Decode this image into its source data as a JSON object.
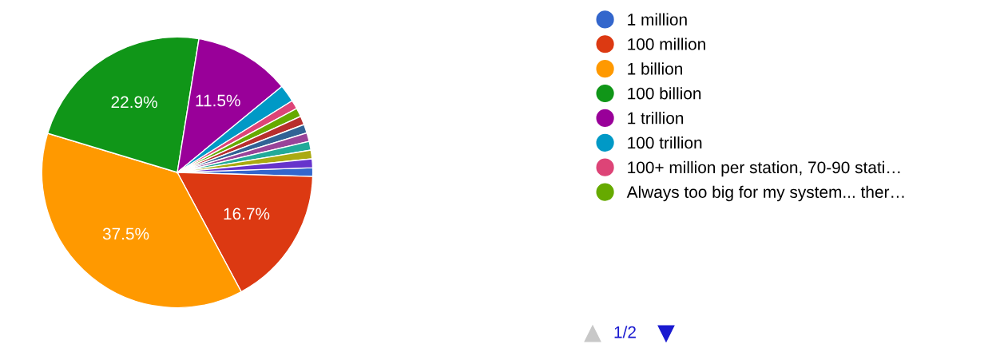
{
  "chart_data": {
    "type": "pie",
    "categories": [
      "1 million",
      "100 million",
      "1 billion",
      "100 billion",
      "1 trillion",
      "100 trillion",
      "100+ million per station, 70-90 stati…",
      "Always too big for my system... ther…",
      null,
      null,
      null,
      null,
      null,
      null
    ],
    "values": [
      1.04,
      16.7,
      37.5,
      22.9,
      11.5,
      2.08,
      1.04,
      1.04,
      1.04,
      1.04,
      1.04,
      1.04,
      1.04,
      1.04
    ],
    "value_labels": [
      null,
      "16.7%",
      "37.5%",
      "22.9%",
      "11.5%",
      null,
      null,
      null,
      null,
      null,
      null,
      null,
      null,
      null
    ],
    "colors": [
      "#3366cc",
      "#dc3912",
      "#ff9900",
      "#109618",
      "#990099",
      "#0099c6",
      "#dd4477",
      "#66aa00",
      "#b82e2e",
      "#316395",
      "#994499",
      "#22aa99",
      "#aaaa11",
      "#6633cc"
    ],
    "legend": "right",
    "annotations": [
      "1/2"
    ]
  }
}
